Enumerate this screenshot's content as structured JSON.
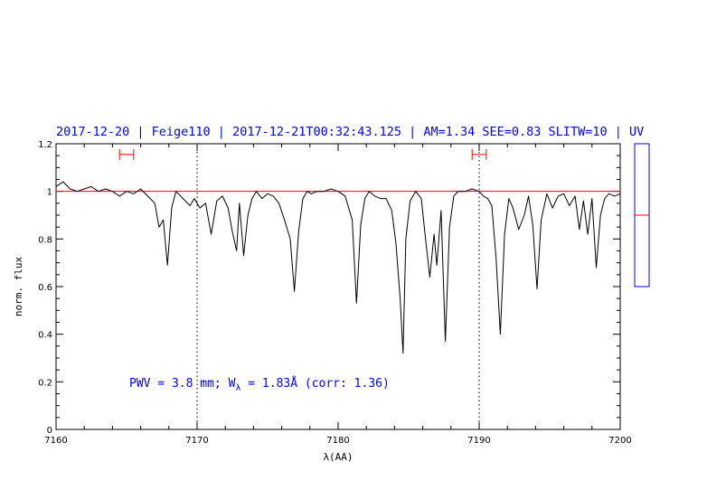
{
  "chart_data": {
    "type": "line",
    "title": "2017-12-20 | Feige110 | 2017-12-21T00:32:43.125 | AM=1.34  SEE=0.83  SLITW=10 | UV",
    "xlabel": "λ(AA)",
    "ylabel": "norm. flux",
    "xlim": [
      7160,
      7200
    ],
    "ylim": [
      0,
      1.2
    ],
    "x_ticks": [
      7160,
      7170,
      7180,
      7190,
      7200
    ],
    "y_ticks": [
      "0",
      "0.2",
      "0.4",
      "0.6",
      "0.8",
      "1",
      "1.2"
    ],
    "y_tick_values": [
      0,
      0.2,
      0.4,
      0.6,
      0.8,
      1.0,
      1.2
    ],
    "grid": false,
    "continuum_level": 1.0,
    "continuum_color": "#ff0000",
    "spectrum_color": "#000000",
    "reference_lines_x": [
      7170,
      7190
    ],
    "continuum_windows": [
      [
        7164.5,
        7165.5
      ],
      [
        7189.5,
        7190.5
      ]
    ],
    "window_marker_y": 1.155,
    "series": [
      {
        "x": [
          7160.0,
          7160.5,
          7161.0,
          7161.5,
          7162.0,
          7162.5,
          7163.0,
          7163.5,
          7164.0,
          7164.5,
          7165.0,
          7165.5,
          7166.0,
          7166.5,
          7167.0,
          7167.3,
          7167.6,
          7167.9,
          7168.2,
          7168.5,
          7169.0,
          7169.5,
          7169.8,
          7170.2,
          7170.6,
          7171.0,
          7171.4,
          7171.8,
          7172.2,
          7172.5,
          7172.8,
          7173.0,
          7173.3,
          7173.6,
          7173.9,
          7174.2,
          7174.6,
          7175.0,
          7175.4,
          7175.8,
          7176.2,
          7176.6,
          7176.9,
          7177.2,
          7177.5,
          7177.8,
          7178.1,
          7178.5,
          7179.0,
          7179.5,
          7180.0,
          7180.5,
          7181.0,
          7181.3,
          7181.6,
          7181.9,
          7182.2,
          7182.6,
          7183.0,
          7183.4,
          7183.8,
          7184.1,
          7184.4,
          7184.6,
          7184.8,
          7185.1,
          7185.5,
          7185.9,
          7186.2,
          7186.5,
          7186.8,
          7187.0,
          7187.3,
          7187.6,
          7187.9,
          7188.2,
          7188.5,
          7189.0,
          7189.5,
          7190.0,
          7190.3,
          7190.6,
          7190.9,
          7191.2,
          7191.5,
          7191.8,
          7192.1,
          7192.4,
          7192.8,
          7193.2,
          7193.5,
          7193.8,
          7194.1,
          7194.4,
          7194.8,
          7195.2,
          7195.6,
          7196.0,
          7196.4,
          7196.8,
          7197.1,
          7197.4,
          7197.7,
          7198.0,
          7198.3,
          7198.6,
          7198.9,
          7199.2,
          7199.6,
          7200.0
        ],
        "y": [
          1.02,
          1.04,
          1.01,
          1.0,
          1.01,
          1.02,
          1.0,
          1.01,
          1.0,
          0.98,
          1.0,
          0.99,
          1.01,
          0.98,
          0.95,
          0.85,
          0.88,
          0.69,
          0.93,
          1.0,
          0.97,
          0.94,
          0.97,
          0.93,
          0.95,
          0.82,
          0.96,
          0.98,
          0.93,
          0.83,
          0.75,
          0.95,
          0.73,
          0.9,
          0.97,
          1.0,
          0.97,
          0.99,
          0.98,
          0.95,
          0.88,
          0.8,
          0.58,
          0.83,
          0.97,
          1.0,
          0.99,
          1.0,
          1.0,
          1.01,
          1.0,
          0.98,
          0.88,
          0.53,
          0.86,
          0.97,
          1.0,
          0.98,
          0.97,
          0.97,
          0.92,
          0.78,
          0.55,
          0.32,
          0.8,
          0.96,
          1.0,
          0.97,
          0.8,
          0.64,
          0.82,
          0.69,
          0.92,
          0.37,
          0.85,
          0.98,
          1.0,
          1.0,
          1.01,
          1.0,
          0.98,
          0.97,
          0.94,
          0.72,
          0.4,
          0.82,
          0.97,
          0.93,
          0.84,
          0.9,
          0.98,
          0.86,
          0.59,
          0.88,
          0.99,
          0.93,
          0.98,
          0.99,
          0.94,
          0.98,
          0.84,
          0.96,
          0.82,
          0.97,
          0.68,
          0.9,
          0.97,
          0.99,
          0.98,
          0.99
        ]
      }
    ],
    "annotation": {
      "text_prefix": "PWV = 3.8 mm; W",
      "subscript": "λ",
      "text_suffix": " = 1.83Å (corr: 1.36)"
    },
    "inset": {
      "level_color": "#ff0000",
      "frame_color": "#0000ff",
      "level": 0.5
    }
  }
}
